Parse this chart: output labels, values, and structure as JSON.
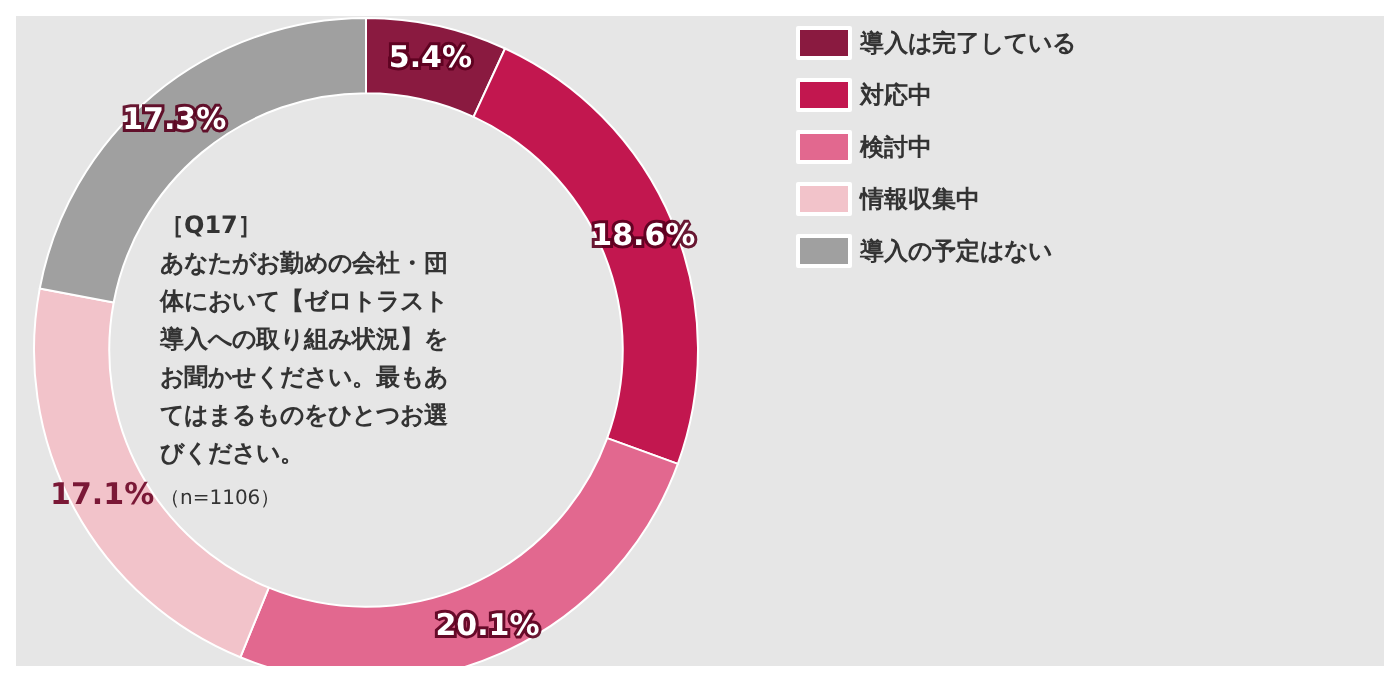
{
  "chart_data": {
    "type": "donut",
    "categories": [
      "導入は完了している",
      "対応中",
      "検討中",
      "情報収集中",
      "導入の予定はない"
    ],
    "values": [
      5.4,
      18.6,
      20.1,
      17.1,
      17.3
    ],
    "colors": [
      "#8a1a40",
      "#c2174f",
      "#e2688f",
      "#f2c3ca",
      "#a0a0a0"
    ],
    "value_labels": [
      "5.4%",
      "18.6%",
      "20.1%",
      "17.1%",
      "17.3%"
    ],
    "annotations": [
      "［Q17］",
      "あなたがお勤めの会社・団体において【ゼロトラスト導入への取り組み状況】をお聞かせください。最もあてはまるものをひとつお選びください。",
      "（n=1106）"
    ],
    "legend": "top right"
  }
}
